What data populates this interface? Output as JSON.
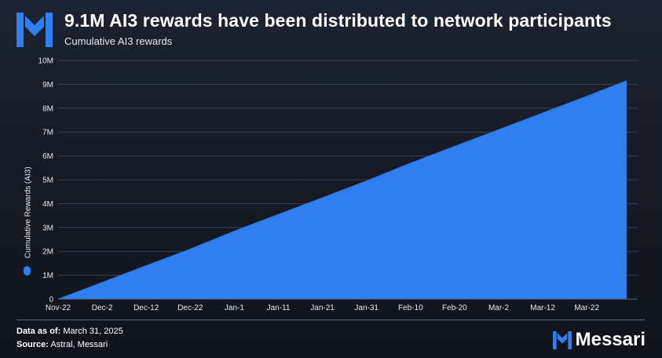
{
  "header": {
    "title": "9.1M AI3 rewards have been distributed to network participants",
    "subtitle": "Cumulative AI3 rewards"
  },
  "footer": {
    "date_label": "Data as of:",
    "date_value": "March 31, 2025",
    "source_label": "Source:",
    "source_value": "Astral, Messari",
    "brand": "Messari"
  },
  "colors": {
    "area_fill": "#2f7ff0",
    "area_edge": "#2a72dd",
    "grid": "#394250",
    "tick_text": "#e6e9ee",
    "legend_dot": "#2f7ff0"
  },
  "icons": {
    "logo": "messari-logo-icon",
    "legend": "legend-dot-icon"
  },
  "chart_data": {
    "type": "area",
    "title": "Cumulative AI3 rewards",
    "ylabel": "Cumulative Rewards (AI3)",
    "xlabel": "",
    "legend_position": "left",
    "grid": true,
    "ylim": [
      0,
      10000000
    ],
    "yticks": [
      "0",
      "1M",
      "2M",
      "3M",
      "4M",
      "5M",
      "6M",
      "7M",
      "8M",
      "9M",
      "10M"
    ],
    "xticks": [
      "Nov-22",
      "Dec-2",
      "Dec-12",
      "Dec-22",
      "Jan-1",
      "Jan-11",
      "Jan-21",
      "Jan-31",
      "Feb-10",
      "Feb-20",
      "Mar-2",
      "Mar-12",
      "Mar-22"
    ],
    "series": [
      {
        "name": "Cumulative Rewards (AI3)",
        "x": [
          "2024-11-22",
          "2024-12-02",
          "2024-12-12",
          "2024-12-22",
          "2025-01-01",
          "2025-01-11",
          "2025-01-21",
          "2025-01-31",
          "2025-02-10",
          "2025-02-20",
          "2025-03-02",
          "2025-03-12",
          "2025-03-22",
          "2025-03-31"
        ],
        "values": [
          0,
          700000,
          1400000,
          2100000,
          2850000,
          3550000,
          4250000,
          4950000,
          5700000,
          6400000,
          7100000,
          7800000,
          8500000,
          9150000
        ]
      }
    ]
  }
}
